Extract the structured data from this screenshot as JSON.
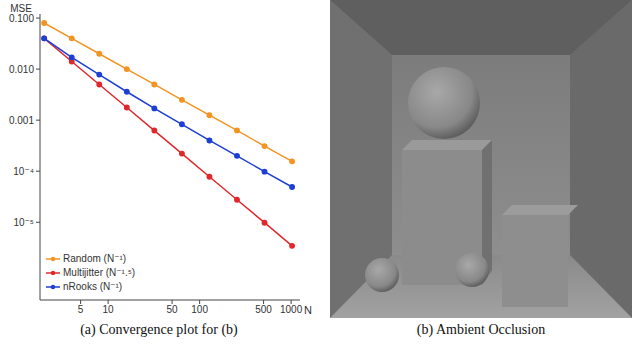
{
  "chart_data": {
    "type": "line",
    "log": true,
    "legend": "lower left",
    "marker": "circle",
    "x_label": "N",
    "y_label": "MSE",
    "x": [
      2,
      4,
      8,
      16,
      32,
      64,
      128,
      256,
      512,
      1024
    ],
    "xlim": [
      1.8,
      1250
    ],
    "xticks": [
      5,
      10,
      50,
      100,
      500,
      1000
    ],
    "ylim": [
      3e-07,
      0.12
    ],
    "yticks": [
      {
        "value": 0.1,
        "label": "0.100"
      },
      {
        "value": 0.01,
        "label": "0.010"
      },
      {
        "value": 0.001,
        "label": "0.001"
      },
      {
        "value": 0.0001,
        "label": "10⁻⁴"
      },
      {
        "value": 1e-05,
        "label": "10⁻⁵"
      }
    ],
    "series": [
      {
        "name": "Random (N⁻¹)",
        "color": "#f39422",
        "values": [
          0.08,
          0.04,
          0.02,
          0.01,
          0.005,
          0.0025,
          0.00125,
          0.00063,
          0.00031,
          0.000156
        ]
      },
      {
        "name": "Multijitter (N⁻¹.⁵)",
        "color": "#e0282c",
        "values": [
          0.04,
          0.0141,
          0.005,
          0.00177,
          0.000625,
          0.000221,
          7.8e-05,
          2.76e-05,
          9.8e-06,
          3.45e-06
        ]
      },
      {
        "name": "nRooks (N⁻¹)",
        "color": "#1c3fd4",
        "values": [
          0.04,
          0.017,
          0.0078,
          0.0036,
          0.0017,
          0.00083,
          0.0004,
          0.0002,
          9.8e-05,
          4.9e-05
        ]
      }
    ]
  },
  "captions": [
    "(a) Convergence plot for (b)",
    "(b) Ambient Occlusion"
  ]
}
